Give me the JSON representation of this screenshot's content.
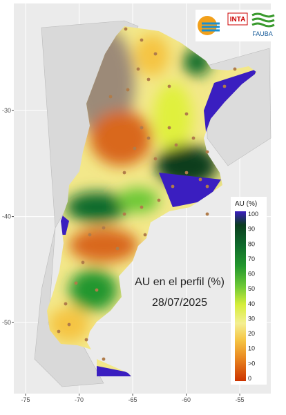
{
  "axes": {
    "xlim": [
      -76.1,
      -52.1
    ],
    "ylim": [
      -56.7,
      -19.9
    ],
    "xticks": [
      -75,
      -70,
      -65,
      -60,
      -55
    ],
    "yticks": [
      -30,
      -40,
      -50
    ]
  },
  "title": "AU en el perfil (%)",
  "date": "28/07/2025",
  "logos": [
    "INTA",
    "FAUBA"
  ],
  "legend": {
    "title": "AU (%)",
    "labels": [
      "100",
      "90",
      "80",
      "70",
      "60",
      "50",
      "40",
      "30",
      "20",
      "10",
      ">0",
      "0"
    ]
  }
}
